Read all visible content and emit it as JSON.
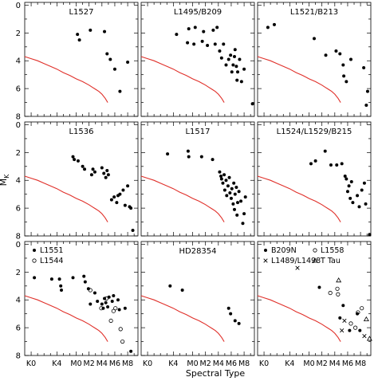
{
  "figure": {
    "ylabel": "M_K",
    "xlabel": "Spectral Type"
  },
  "colors": {
    "track": "#e0302a",
    "axis": "#000000",
    "marker": "#000000"
  },
  "chart_data": {
    "type": "scatter",
    "grid": false,
    "xaxis": {
      "tick_labels": [
        "K0",
        "K4",
        "M0",
        "M2",
        "M4",
        "M6",
        "M8"
      ],
      "tick_values": [
        0,
        4,
        7,
        9,
        11,
        13,
        15
      ],
      "range": [
        -1,
        16.6
      ]
    },
    "yaxis": {
      "tick_labels": [
        "0",
        "2",
        "4",
        "6",
        "8"
      ],
      "range": [
        8,
        -0.2
      ],
      "inverted": true
    },
    "reference_curve": {
      "x": [
        -1,
        0,
        1,
        2,
        3,
        4,
        5,
        6,
        7,
        8,
        9,
        9.5,
        10,
        10.5,
        11,
        11.5,
        11.9
      ],
      "y": [
        3.7,
        3.85,
        4.0,
        4.2,
        4.4,
        4.6,
        4.85,
        5.05,
        5.3,
        5.5,
        5.75,
        5.9,
        6.05,
        6.2,
        6.4,
        6.7,
        7.0
      ]
    },
    "panels": [
      {
        "title": "L1527",
        "series": [
          {
            "marker": "filled",
            "points": [
              [
                7.2,
                2.1
              ],
              [
                7.5,
                2.5
              ],
              [
                9.2,
                1.8
              ],
              [
                11.4,
                1.9
              ],
              [
                11.8,
                3.5
              ],
              [
                12.3,
                3.9
              ],
              [
                13,
                4.6
              ],
              [
                13.8,
                6.2
              ],
              [
                15,
                4.1
              ]
            ]
          }
        ]
      },
      {
        "title": "L1495/B209",
        "series": [
          {
            "marker": "filled",
            "points": [
              [
                4.5,
                2.1
              ],
              [
                6.2,
                2.7
              ],
              [
                6.4,
                1.7
              ],
              [
                7.2,
                2.8
              ],
              [
                7.4,
                1.6
              ],
              [
                8.5,
                2.6
              ],
              [
                8.7,
                1.9
              ],
              [
                9.3,
                2.9
              ],
              [
                10.2,
                1.8
              ],
              [
                10.5,
                2.8
              ],
              [
                10.8,
                1.6
              ],
              [
                11.2,
                3.3
              ],
              [
                11.5,
                3.8
              ],
              [
                11.8,
                2.8
              ],
              [
                12.2,
                4.3
              ],
              [
                12.6,
                3.9
              ],
              [
                12.9,
                3.6
              ],
              [
                13.1,
                4.8
              ],
              [
                13.3,
                4.3
              ],
              [
                13.5,
                3.7
              ],
              [
                13.6,
                3.2
              ],
              [
                13.8,
                4.4
              ],
              [
                13.9,
                5.4
              ],
              [
                14,
                4.8
              ],
              [
                14.3,
                3.9
              ],
              [
                14.6,
                5.5
              ],
              [
                15,
                4.6
              ],
              [
                16.3,
                7.1
              ]
            ]
          }
        ]
      },
      {
        "title": "L1521/B213",
        "series": [
          {
            "marker": "filled",
            "points": [
              [
                0.6,
                1.6
              ],
              [
                1.6,
                1.4
              ],
              [
                7.8,
                2.4
              ],
              [
                9.6,
                3.6
              ],
              [
                11.2,
                3.3
              ],
              [
                11.8,
                3.5
              ],
              [
                12.3,
                4.3
              ],
              [
                12.4,
                5.1
              ],
              [
                12.8,
                5.5
              ],
              [
                13.5,
                3.9
              ],
              [
                15.5,
                4.5
              ],
              [
                15.9,
                7.2
              ],
              [
                16.1,
                6.2
              ]
            ]
          }
        ]
      },
      {
        "title": "L1536",
        "series": [
          {
            "marker": "filled",
            "points": [
              [
                6.5,
                2.3
              ],
              [
                6.7,
                2.5
              ],
              [
                7.3,
                2.6
              ],
              [
                8,
                3.0
              ],
              [
                8.3,
                3.2
              ],
              [
                9.4,
                3.6
              ],
              [
                9.6,
                3.2
              ],
              [
                9.9,
                3.4
              ],
              [
                11,
                3.1
              ],
              [
                11.3,
                3.5
              ],
              [
                11.6,
                3.8
              ],
              [
                11.8,
                3.3
              ],
              [
                12,
                3.6
              ],
              [
                12.5,
                5.4
              ],
              [
                12.9,
                5.2
              ],
              [
                13.3,
                5.6
              ],
              [
                13.5,
                5.1
              ],
              [
                13.8,
                5.0
              ],
              [
                14.3,
                4.7
              ],
              [
                14.6,
                5.8
              ],
              [
                15,
                4.4
              ],
              [
                15.3,
                5.9
              ],
              [
                15.5,
                6.0
              ],
              [
                15.8,
                7.6
              ]
            ]
          }
        ]
      },
      {
        "title": "L1517",
        "series": [
          {
            "marker": "filled",
            "points": [
              [
                3.1,
                2.1
              ],
              [
                6.3,
                1.9
              ],
              [
                6.4,
                2.3
              ],
              [
                8.4,
                2.3
              ],
              [
                10.1,
                2.5
              ],
              [
                11.2,
                3.4
              ],
              [
                11.4,
                3.7
              ],
              [
                11.5,
                3.9
              ],
              [
                11.7,
                4.2
              ],
              [
                11.9,
                3.6
              ],
              [
                12,
                4.7
              ],
              [
                12.2,
                4.0
              ],
              [
                12.3,
                5.1
              ],
              [
                12.5,
                4.4
              ],
              [
                12.7,
                3.8
              ],
              [
                12.8,
                4.9
              ],
              [
                13,
                5.3
              ],
              [
                13.1,
                4.6
              ],
              [
                13.3,
                5.7
              ],
              [
                13.4,
                4.2
              ],
              [
                13.5,
                6.1
              ],
              [
                13.6,
                5.0
              ],
              [
                13.8,
                4.5
              ],
              [
                13.9,
                6.5
              ],
              [
                14,
                5.6
              ],
              [
                14.2,
                4.8
              ],
              [
                14.5,
                5.5
              ],
              [
                14.8,
                7.1
              ],
              [
                15,
                6.4
              ],
              [
                15.2,
                5.2
              ]
            ]
          }
        ]
      },
      {
        "title": "L1524/L1529/B215",
        "series": [
          {
            "marker": "filled",
            "points": [
              [
                7.3,
                2.8
              ],
              [
                8,
                2.6
              ],
              [
                9.5,
                1.9
              ],
              [
                10.4,
                2.9
              ],
              [
                11.3,
                2.9
              ],
              [
                12.1,
                2.8
              ],
              [
                12.6,
                3.7
              ],
              [
                12.8,
                3.9
              ],
              [
                13,
                4.8
              ],
              [
                13.2,
                4.4
              ],
              [
                13.4,
                5.3
              ],
              [
                13.6,
                4.1
              ],
              [
                13.8,
                5.6
              ],
              [
                14.5,
                5.1
              ],
              [
                14.8,
                5.9
              ],
              [
                15.2,
                4.7
              ],
              [
                15.6,
                4.2
              ],
              [
                15.8,
                5.7
              ],
              [
                16.4,
                7.9
              ]
            ]
          }
        ]
      },
      {
        "title": "",
        "legend": [
          "L1551",
          "L1544"
        ],
        "series": [
          {
            "name": "L1551",
            "marker": "filled",
            "points": [
              [
                0.5,
                2.4
              ],
              [
                3.2,
                2.5
              ],
              [
                4.4,
                2.5
              ],
              [
                4.6,
                3.0
              ],
              [
                4.7,
                3.3
              ],
              [
                6.5,
                2.4
              ],
              [
                8.2,
                2.3
              ],
              [
                8.4,
                2.7
              ],
              [
                8.9,
                3.2
              ],
              [
                9.2,
                4.3
              ],
              [
                9.9,
                3.5
              ],
              [
                10.3,
                4.1
              ],
              [
                11,
                4.3
              ],
              [
                11.2,
                4.6
              ],
              [
                11.4,
                3.9
              ],
              [
                11.6,
                4.2
              ],
              [
                11.9,
                4.5
              ],
              [
                12.1,
                3.8
              ],
              [
                12.6,
                4.1
              ],
              [
                12.8,
                3.7
              ],
              [
                13.5,
                4.0
              ],
              [
                13.7,
                4.7
              ],
              [
                14.6,
                4.6
              ],
              [
                15.5,
                7.7
              ]
            ]
          },
          {
            "name": "L1544",
            "marker": "open",
            "points": [
              [
                9.2,
                3.3
              ],
              [
                10.9,
                4.6
              ],
              [
                11.7,
                3.9
              ],
              [
                12.4,
                5.5
              ],
              [
                12.8,
                4.8
              ],
              [
                13.1,
                4.6
              ],
              [
                13.9,
                6.1
              ],
              [
                14.2,
                7.0
              ]
            ]
          }
        ]
      },
      {
        "title": "HD28354",
        "series": [
          {
            "marker": "filled",
            "points": [
              [
                3.5,
                3.0
              ],
              [
                5.4,
                3.3
              ],
              [
                12.6,
                4.6
              ],
              [
                12.9,
                5.0
              ],
              [
                13.6,
                5.5
              ],
              [
                14.2,
                5.7
              ]
            ]
          }
        ]
      },
      {
        "title": "",
        "legend": [
          "B209N",
          "L1558",
          "L1489/L1498",
          "T Tau"
        ],
        "series": [
          {
            "name": "B209N",
            "marker": "filled",
            "points": [
              [
                8.6,
                3.1
              ],
              [
                11.8,
                5.3
              ],
              [
                12.3,
                4.4
              ],
              [
                13.3,
                6.2
              ],
              [
                14.5,
                5.0
              ],
              [
                14.9,
                6.2
              ]
            ]
          },
          {
            "name": "L1558",
            "marker": "open",
            "points": [
              [
                10.3,
                3.5
              ],
              [
                11.4,
                3.2
              ],
              [
                11.5,
                3.6
              ],
              [
                13.5,
                5.7
              ],
              [
                14.2,
                6.0
              ],
              [
                14.6,
                4.9
              ],
              [
                15.2,
                4.6
              ]
            ]
          },
          {
            "name": "L1489/L1498",
            "marker": "cross",
            "points": [
              [
                5.2,
                1.7
              ],
              [
                12.1,
                6.2
              ],
              [
                12.5,
                5.5
              ],
              [
                15.6,
                6.6
              ]
            ]
          },
          {
            "name": "T Tau",
            "marker": "triangle",
            "points": [
              [
                11.6,
                2.6
              ],
              [
                15.9,
                5.4
              ],
              [
                16.4,
                6.8
              ]
            ]
          }
        ]
      }
    ]
  }
}
